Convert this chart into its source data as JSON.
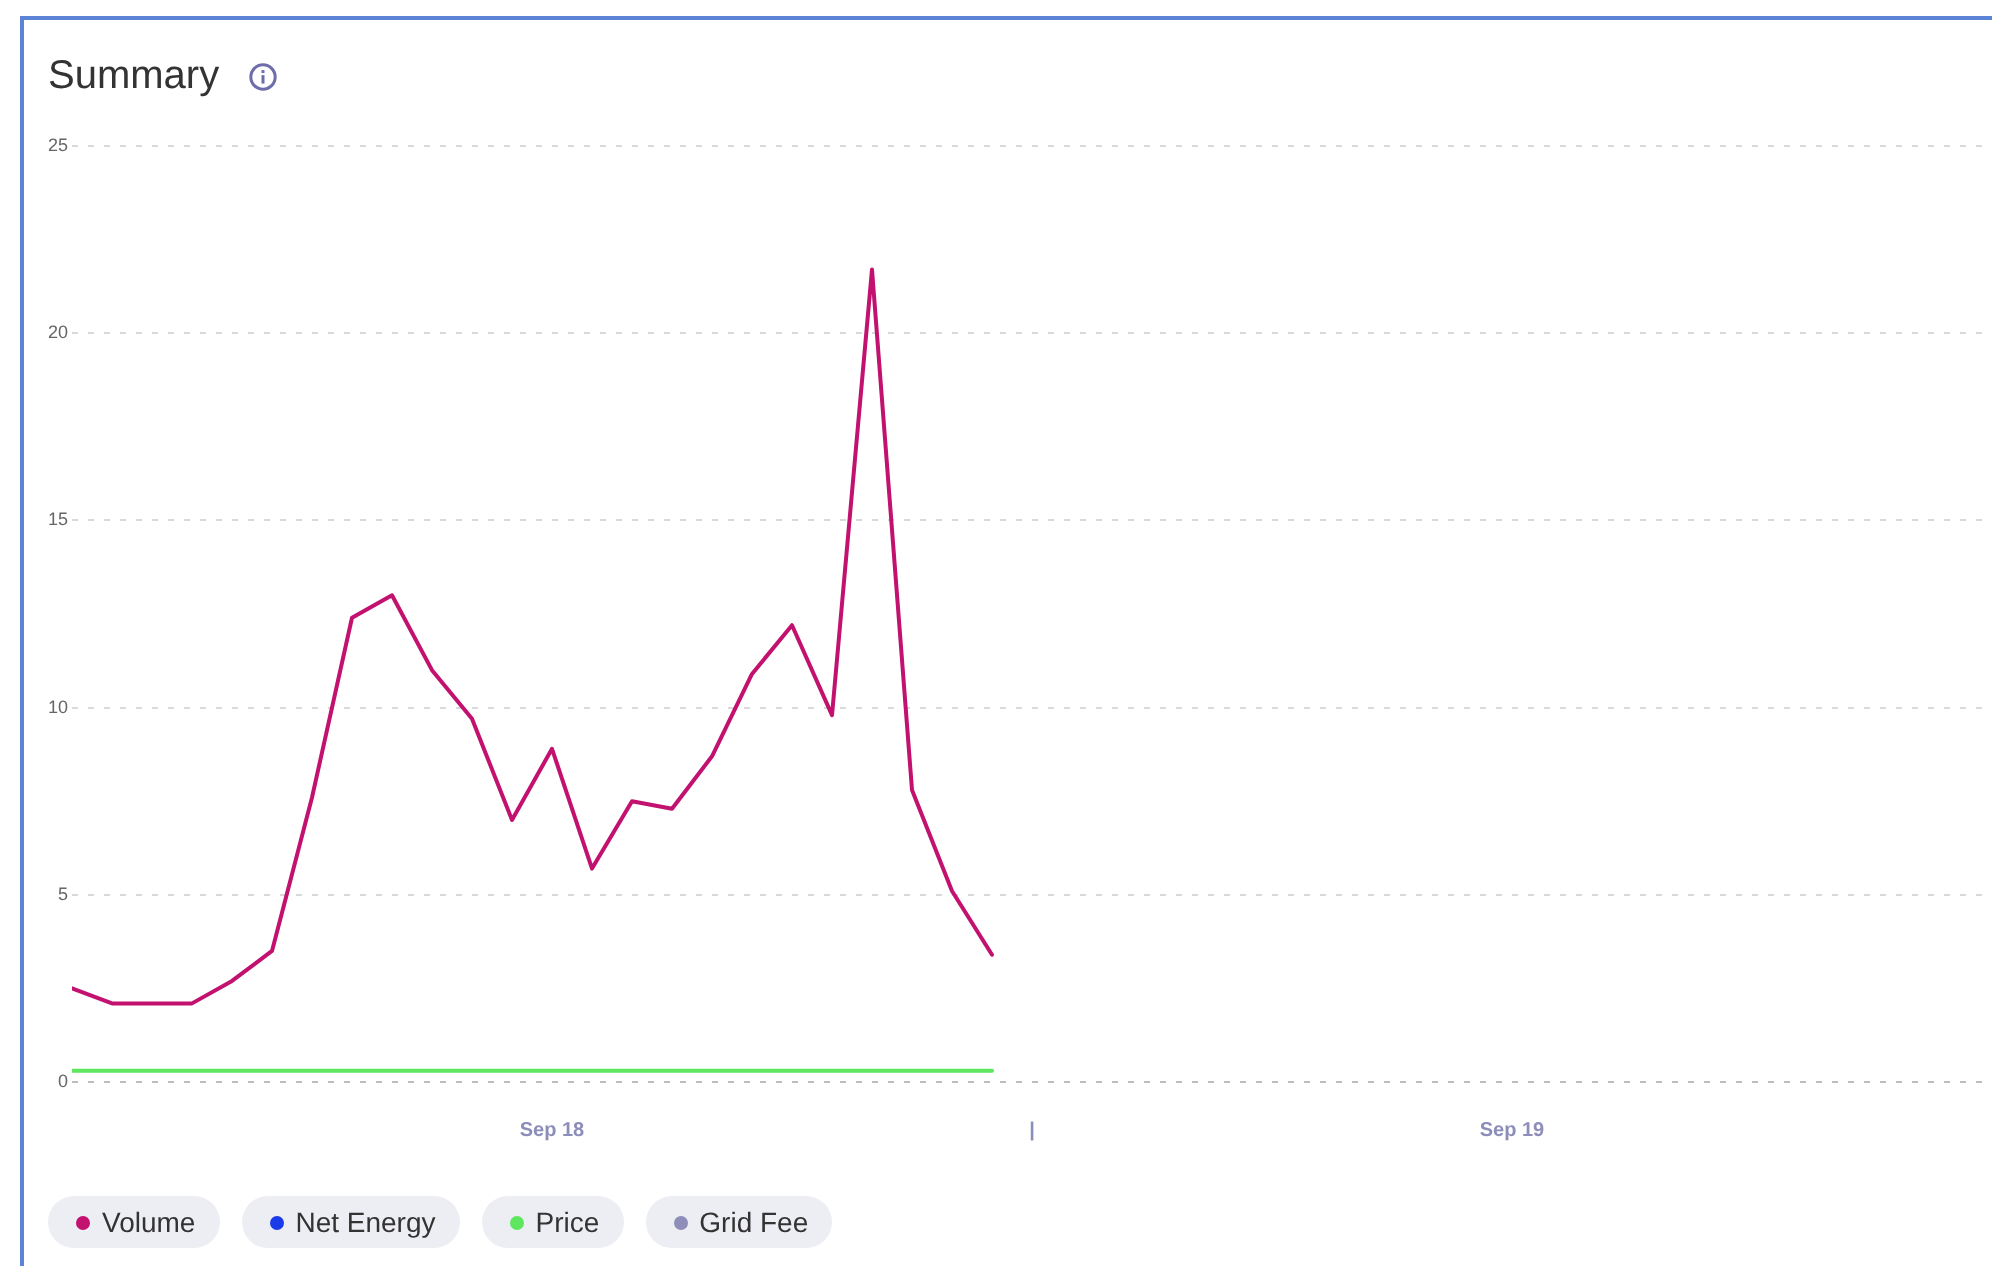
{
  "chart_data": {
    "type": "line",
    "title": "Summary",
    "x": [
      "--09-18T00:00",
      "--09-18T01:00",
      "--09-18T02:00",
      "--09-18T03:00",
      "--09-18T04:00",
      "--09-18T05:00",
      "--09-18T06:00",
      "--09-18T07:00",
      "--09-18T08:00",
      "--09-18T09:00",
      "--09-18T10:00",
      "--09-18T11:00",
      "--09-18T12:00",
      "--09-18T13:00",
      "--09-18T14:00",
      "--09-18T15:00",
      "--09-18T16:00",
      "--09-18T17:00",
      "--09-18T18:00",
      "--09-18T19:00",
      "--09-18T20:00",
      "--09-18T21:00",
      "--09-18T22:00",
      "--09-18T23:00"
    ],
    "xlim": [
      "--09-18T00:00",
      "--09-20T00:00"
    ],
    "xticks": [
      {
        "value": "--09-18T12:00",
        "label": "Sep 18"
      },
      {
        "value": "--09-19T00:00",
        "label": "|"
      },
      {
        "value": "--09-19T12:00",
        "label": "Sep 19"
      }
    ],
    "ylim": [
      0,
      25
    ],
    "yticks": [
      0,
      5,
      10,
      15,
      20,
      25
    ],
    "series": [
      {
        "name": "Volume",
        "color": "#c2116e",
        "values": [
          2.5,
          2.1,
          2.1,
          2.1,
          2.7,
          3.5,
          7.6,
          12.4,
          13.0,
          11.0,
          9.7,
          7.0,
          8.9,
          5.7,
          7.5,
          7.3,
          8.7,
          10.9,
          12.2,
          9.8,
          21.7,
          7.8,
          5.1,
          3.4
        ]
      },
      {
        "name": "Net Energy",
        "color": "#1a3be8",
        "values": [
          null,
          null,
          null,
          null,
          null,
          null,
          null,
          null,
          null,
          null,
          null,
          null,
          null,
          null,
          null,
          null,
          null,
          null,
          null,
          null,
          null,
          null,
          null,
          null
        ]
      },
      {
        "name": "Price",
        "color": "#5ee65e",
        "values": [
          0.3,
          0.3,
          0.3,
          0.3,
          0.3,
          0.3,
          0.3,
          0.3,
          0.3,
          0.3,
          0.3,
          0.3,
          0.3,
          0.3,
          0.3,
          0.3,
          0.3,
          0.3,
          0.3,
          0.3,
          0.3,
          0.3,
          0.3,
          0.3
        ]
      },
      {
        "name": "Grid Fee",
        "color": "#8e8eb8",
        "values": [
          null,
          null,
          null,
          null,
          null,
          null,
          null,
          null,
          null,
          null,
          null,
          null,
          null,
          null,
          null,
          null,
          null,
          null,
          null,
          null,
          null,
          null,
          null,
          null
        ]
      }
    ],
    "grid": "y",
    "legend": "bottom",
    "marker": "none"
  }
}
